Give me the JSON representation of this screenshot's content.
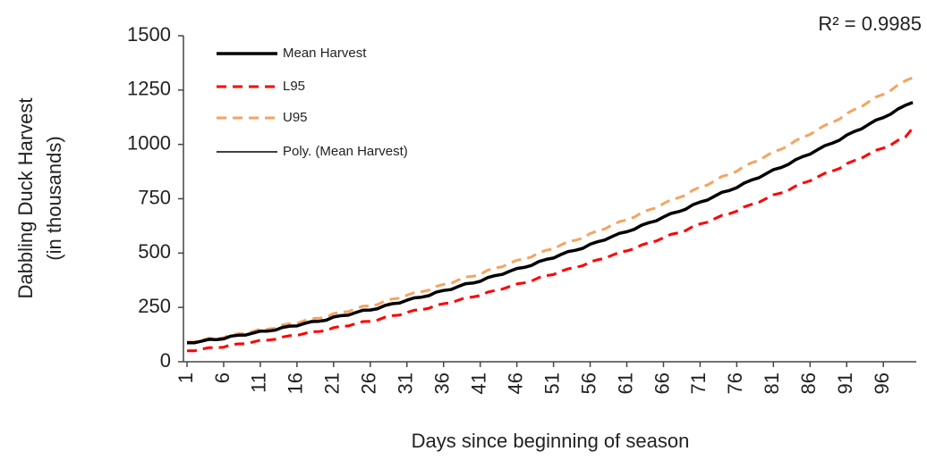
{
  "chart_data": {
    "type": "line",
    "annotation": "R² = 0.9985",
    "xlabel": "Days since beginning of season",
    "ylabel": [
      "Dabbling Duck Harvest",
      "(in thousands)"
    ],
    "categories": [
      "1",
      null,
      null,
      null,
      null,
      "6",
      null,
      null,
      null,
      null,
      "11",
      null,
      null,
      null,
      null,
      "16",
      null,
      null,
      null,
      null,
      "21",
      null,
      null,
      null,
      null,
      "26",
      null,
      null,
      null,
      null,
      "31",
      null,
      null,
      null,
      null,
      "36",
      null,
      null,
      null,
      null,
      "41",
      null,
      null,
      null,
      null,
      "46",
      null,
      null,
      null,
      null,
      "51",
      null,
      null,
      null,
      null,
      "56",
      null,
      null,
      null,
      null,
      "61",
      null,
      null,
      null,
      null,
      "66",
      null,
      null,
      null,
      null,
      "71",
      null,
      null,
      null,
      null,
      "76",
      null,
      null,
      null,
      null,
      "81",
      null,
      null,
      null,
      null,
      "86",
      null,
      null,
      null,
      null,
      "91",
      null,
      null,
      null,
      null,
      "96",
      null,
      null,
      null,
      null
    ],
    "ylim": [
      0,
      1500
    ],
    "yticks": [
      0,
      250,
      500,
      750,
      1000,
      1250,
      1500
    ],
    "grid": false,
    "legend": "top-left",
    "series": [
      {
        "name": "Mean Harvest",
        "color": "#000000",
        "style": "solid",
        "values": [
          87,
          87,
          95,
          103,
          102,
          105,
          118,
          122,
          123,
          132,
          141,
          141,
          145,
          158,
          164,
          165,
          176,
          185,
          186,
          191,
          206,
          212,
          214,
          226,
          237,
          238,
          244,
          259,
          267,
          270,
          283,
          294,
          297,
          304,
          320,
          328,
          332,
          346,
          359,
          362,
          370,
          387,
          396,
          402,
          416,
          429,
          434,
          443,
          461,
          471,
          477,
          493,
          507,
          513,
          522,
          541,
          552,
          560,
          576,
          591,
          598,
          609,
          628,
          640,
          648,
          666,
          682,
          690,
          701,
          722,
          735,
          744,
          762,
          780,
          788,
          801,
          822,
          836,
          846,
          865,
          884,
          893,
          907,
          929,
          944,
          955,
          975,
          994,
          1005,
          1019,
          1043,
          1059,
          1071,
          1092,
          1112,
          1123,
          1139,
          1163,
          1180,
          1193
        ]
      },
      {
        "name": "L95",
        "color": "#ff0000",
        "style": "dashed",
        "values": [
          50,
          50,
          58,
          65,
          64,
          67,
          78,
          82,
          83,
          91,
          99,
          99,
          103,
          114,
          120,
          121,
          130,
          139,
          139,
          144,
          157,
          163,
          165,
          175,
          185,
          186,
          192,
          205,
          212,
          215,
          227,
          237,
          239,
          246,
          260,
          267,
          271,
          283,
          295,
          298,
          305,
          320,
          328,
          334,
          346,
          358,
          363,
          371,
          387,
          396,
          401,
          416,
          428,
          434,
          442,
          459,
          469,
          476,
          490,
          504,
          510,
          520,
          537,
          548,
          555,
          571,
          586,
          593,
          603,
          622,
          634,
          642,
          658,
          674,
          681,
          693,
          712,
          724,
          733,
          751,
          768,
          776,
          788,
          808,
          822,
          832,
          850,
          867,
          877,
          889,
          911,
          925,
          936,
          955,
          973,
          983,
          997,
          1019,
          1034,
          1075
        ]
      },
      {
        "name": "U95",
        "color": "#f4a460",
        "style": "dashed",
        "values": [
          91,
          91,
          100,
          108,
          107,
          111,
          125,
          129,
          130,
          140,
          150,
          150,
          155,
          169,
          175,
          177,
          189,
          199,
          200,
          205,
          222,
          228,
          230,
          244,
          256,
          257,
          263,
          280,
          289,
          292,
          306,
          318,
          322,
          329,
          347,
          356,
          360,
          376,
          390,
          393,
          402,
          421,
          431,
          437,
          453,
          467,
          472,
          482,
          502,
          513,
          520,
          537,
          553,
          559,
          569,
          590,
          602,
          611,
          629,
          645,
          653,
          665,
          686,
          699,
          708,
          728,
          745,
          754,
          766,
          789,
          804,
          813,
          833,
          853,
          862,
          876,
          899,
          915,
          926,
          947,
          967,
          977,
          993,
          1017,
          1033,
          1046,
          1068,
          1088,
          1101,
          1116,
          1142,
          1160,
          1173,
          1196,
          1218,
          1230,
          1248,
          1274,
          1293,
          1307
        ]
      },
      {
        "name": "Poly. (Mean Harvest)",
        "color": "#000000",
        "style": "thin",
        "values": [
          85,
          90,
          94,
          99,
          104,
          109,
          115,
          120,
          126,
          131,
          137,
          143,
          149,
          155,
          162,
          168,
          175,
          181,
          188,
          195,
          203,
          210,
          217,
          225,
          233,
          240,
          248,
          256,
          265,
          273,
          282,
          290,
          299,
          308,
          317,
          326,
          335,
          345,
          355,
          364,
          374,
          384,
          394,
          405,
          415,
          425,
          436,
          447,
          458,
          469,
          480,
          492,
          503,
          515,
          526,
          538,
          550,
          563,
          575,
          587,
          600,
          613,
          625,
          638,
          651,
          665,
          678,
          692,
          705,
          719,
          733,
          747,
          761,
          776,
          790,
          805,
          819,
          834,
          849,
          864,
          880,
          895,
          911,
          926,
          942,
          958,
          974,
          990,
          1007,
          1023,
          1040,
          1057,
          1074,
          1091,
          1108,
          1125,
          1143,
          1160,
          1178,
          1196
        ]
      }
    ]
  }
}
